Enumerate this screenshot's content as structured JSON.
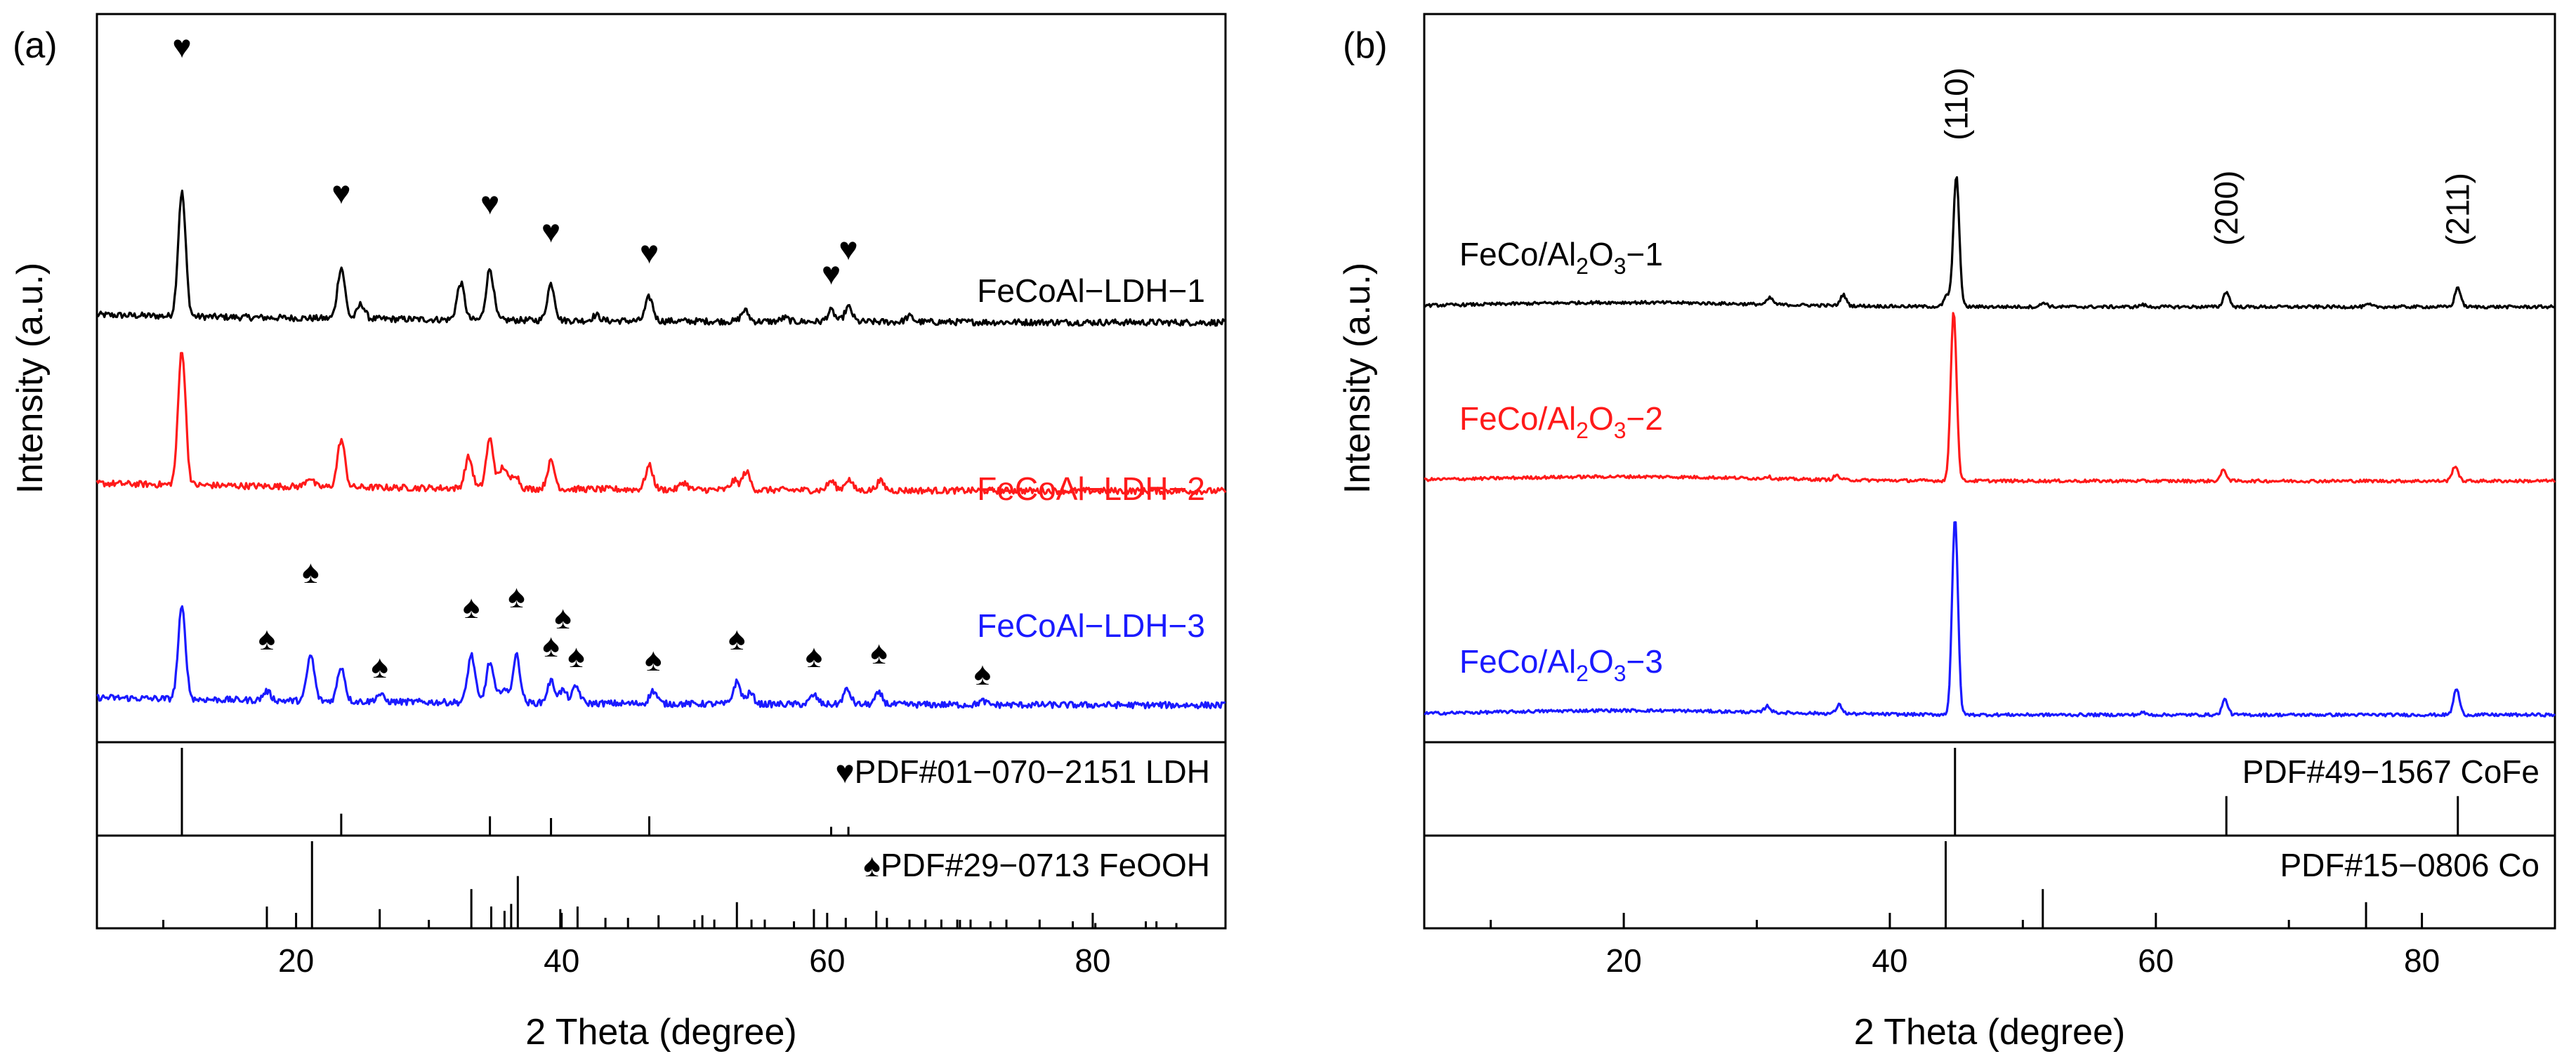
{
  "chart_data": [
    {
      "panel_label": "(a)",
      "type": "line",
      "xlabel": "2 Theta (degree)",
      "ylabel": "Intensity (a.u.)",
      "xlim": [
        5,
        90
      ],
      "xticks": [
        20,
        40,
        60,
        80
      ],
      "series": [
        {
          "name": "FeCoAl−LDH−1",
          "color": "#000000",
          "baseline": 0.1,
          "peaks": [
            [
              11.4,
              0.68
            ],
            [
              23.4,
              0.28
            ],
            [
              24.9,
              0.08
            ],
            [
              32.4,
              0.2
            ],
            [
              34.6,
              0.28
            ],
            [
              39.2,
              0.2
            ],
            [
              42.6,
              0.03
            ],
            [
              46.6,
              0.13
            ],
            [
              53.8,
              0.06
            ],
            [
              56.8,
              0.02
            ],
            [
              60.3,
              0.06
            ],
            [
              61.6,
              0.08
            ],
            [
              66.2,
              0.03
            ]
          ]
        },
        {
          "name": "FeCoAl−LDH−2",
          "color": "#ff1a1a",
          "baseline": 0.1,
          "peaks": [
            [
              11.4,
              0.74
            ],
            [
              21.0,
              0.05
            ],
            [
              23.4,
              0.26
            ],
            [
              33.0,
              0.17
            ],
            [
              34.6,
              0.27
            ],
            [
              35.6,
              0.12
            ],
            [
              36.5,
              0.08
            ],
            [
              39.2,
              0.15
            ],
            [
              46.6,
              0.13
            ],
            [
              49.2,
              0.04
            ],
            [
              53.0,
              0.05
            ],
            [
              53.9,
              0.1
            ],
            [
              60.3,
              0.05
            ],
            [
              61.6,
              0.06
            ],
            [
              64.0,
              0.05
            ]
          ]
        },
        {
          "name": "FeCoAl−LDH−3",
          "color": "#1a1aff",
          "baseline": 0.1,
          "peaks": [
            [
              11.4,
              0.5
            ],
            [
              17.8,
              0.05
            ],
            [
              21.1,
              0.25
            ],
            [
              23.4,
              0.19
            ],
            [
              26.3,
              0.04
            ],
            [
              33.2,
              0.26
            ],
            [
              34.6,
              0.22
            ],
            [
              35.6,
              0.08
            ],
            [
              36.6,
              0.26
            ],
            [
              39.2,
              0.12
            ],
            [
              40.1,
              0.07
            ],
            [
              41.1,
              0.09
            ],
            [
              46.9,
              0.07
            ],
            [
              53.2,
              0.12
            ],
            [
              54.2,
              0.06
            ],
            [
              59.0,
              0.05
            ],
            [
              61.5,
              0.08
            ],
            [
              63.9,
              0.06
            ],
            [
              71.7,
              0.02
            ]
          ]
        }
      ],
      "markers": [
        {
          "symbol": "♥",
          "x": [
            11.4,
            23.4,
            34.6,
            39.2,
            46.6,
            60.3,
            61.6
          ]
        },
        {
          "symbol": "♠",
          "x": [
            17.8,
            21.1,
            26.3,
            33.2,
            36.6,
            39.2,
            40.1,
            41.1,
            46.9,
            53.2,
            59.0,
            63.9,
            71.7
          ]
        }
      ],
      "references": [
        {
          "label": "♥PDF#01−070−2151 LDH",
          "lines": [
            [
              11.4,
              1.0
            ],
            [
              23.4,
              0.25
            ],
            [
              34.6,
              0.22
            ],
            [
              39.2,
              0.2
            ],
            [
              46.6,
              0.22
            ],
            [
              60.3,
              0.1
            ],
            [
              61.6,
              0.1
            ]
          ]
        },
        {
          "label": "♠PDF#29−0713 FeOOH",
          "lines": [
            [
              17.8,
              0.25
            ],
            [
              21.2,
              1.0
            ],
            [
              26.3,
              0.22
            ],
            [
              33.2,
              0.45
            ],
            [
              34.7,
              0.25
            ],
            [
              35.7,
              0.2
            ],
            [
              36.2,
              0.28
            ],
            [
              36.7,
              0.6
            ],
            [
              39.9,
              0.22
            ],
            [
              41.2,
              0.25
            ],
            [
              43.3,
              0.12
            ],
            [
              45.0,
              0.12
            ],
            [
              47.3,
              0.15
            ],
            [
              50.6,
              0.15
            ],
            [
              51.5,
              0.1
            ],
            [
              53.2,
              0.3
            ],
            [
              54.3,
              0.1
            ],
            [
              55.3,
              0.1
            ],
            [
              57.5,
              0.08
            ],
            [
              59.0,
              0.22
            ],
            [
              61.4,
              0.12
            ],
            [
              63.7,
              0.2
            ],
            [
              64.5,
              0.12
            ],
            [
              66.2,
              0.1
            ],
            [
              67.4,
              0.1
            ],
            [
              68.6,
              0.1
            ],
            [
              69.8,
              0.1
            ],
            [
              70.8,
              0.1
            ],
            [
              72.3,
              0.08
            ],
            [
              73.5,
              0.1
            ],
            [
              76.0,
              0.1
            ],
            [
              78.5,
              0.08
            ],
            [
              80.2,
              0.06
            ],
            [
              84.0,
              0.08
            ],
            [
              84.8,
              0.08
            ],
            [
              86.3,
              0.06
            ]
          ]
        }
      ]
    },
    {
      "panel_label": "(b)",
      "type": "line",
      "xlabel": "2 Theta (degree)",
      "ylabel": "Intensity (a.u.)",
      "xlim": [
        5,
        90
      ],
      "xticks": [
        20,
        40,
        60,
        80
      ],
      "series": [
        {
          "name": "FeCo/Al2O3−1",
          "color": "#000000",
          "baseline": 0.1,
          "peaks": [
            [
              31.0,
              0.03
            ],
            [
              36.5,
              0.05
            ],
            [
              44.3,
              0.05
            ],
            [
              45.0,
              0.6
            ],
            [
              51.6,
              0.02
            ],
            [
              59.0,
              0.01
            ],
            [
              65.3,
              0.07
            ],
            [
              76.0,
              0.01
            ],
            [
              82.7,
              0.09
            ]
          ]
        },
        {
          "name": "FeCo/Al2O3−2",
          "color": "#ff1a1a",
          "baseline": 0.1,
          "peaks": [
            [
              30.8,
              0.01
            ],
            [
              36.0,
              0.02
            ],
            [
              44.8,
              0.78
            ],
            [
              65.1,
              0.05
            ],
            [
              82.5,
              0.07
            ]
          ]
        },
        {
          "name": "FeCo/Al2O3−3",
          "color": "#1a1aff",
          "baseline": 0.1,
          "peaks": [
            [
              30.8,
              0.03
            ],
            [
              36.2,
              0.04
            ],
            [
              44.9,
              0.9
            ],
            [
              59.0,
              0.01
            ],
            [
              65.2,
              0.07
            ],
            [
              82.6,
              0.12
            ]
          ]
        }
      ],
      "name_parts": [
        [
          "FeCo/Al",
          "2",
          "O",
          "3",
          "−1"
        ],
        [
          "FeCo/Al",
          "2",
          "O",
          "3",
          "−2"
        ],
        [
          "FeCo/Al",
          "2",
          "O",
          "3",
          "−3"
        ]
      ],
      "peak_labels": [
        {
          "text": "(110)",
          "x": 45.0
        },
        {
          "text": "(200)",
          "x": 65.3
        },
        {
          "text": "(211)",
          "x": 82.7
        }
      ],
      "references": [
        {
          "label": "PDF#49−1567 CoFe",
          "lines": [
            [
              44.9,
              1.0
            ],
            [
              65.3,
              0.45
            ],
            [
              82.7,
              0.45
            ]
          ]
        },
        {
          "label": "PDF#15−0806 Co",
          "lines": [
            [
              44.2,
              1.0
            ],
            [
              51.5,
              0.45
            ],
            [
              75.8,
              0.3
            ]
          ]
        }
      ]
    }
  ]
}
